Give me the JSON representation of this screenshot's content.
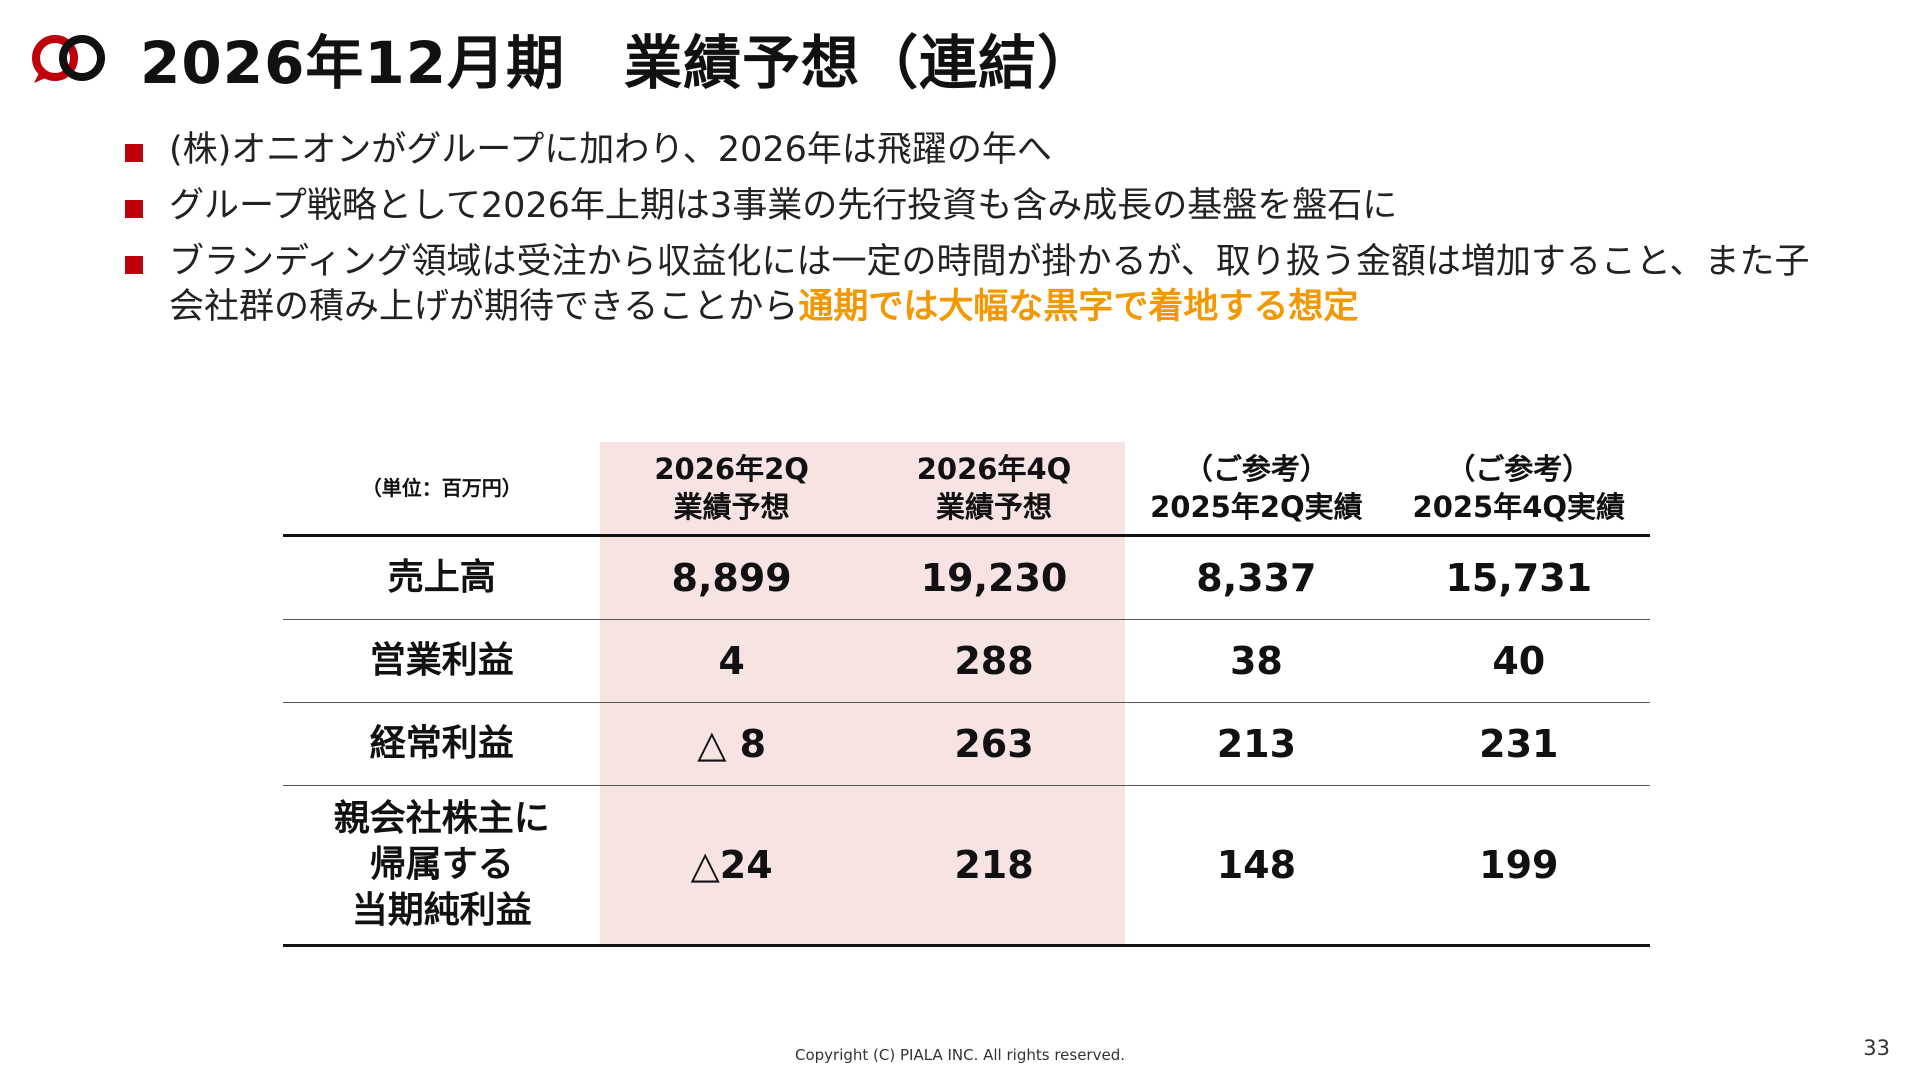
{
  "header": {
    "title": "2026年12月期　業績予想（連結）"
  },
  "bullets": [
    {
      "text": "(株)オニオンがグループに加わり、2026年は飛躍の年へ"
    },
    {
      "text": "グループ戦略として2026年上期は3事業の先行投資も含み成長の基盤を盤石に"
    },
    {
      "text": "ブランディング領域は受注から収益化には一定の時間が掛かるが、取り扱う金額は増加すること、また子会社群の積み上げが期待できることから",
      "highlight": "通期では大幅な黒字で着地する想定"
    }
  ],
  "table": {
    "unit": "（単位：百万円）",
    "columns": [
      {
        "line1": "2026年2Q",
        "line2": "業績予想"
      },
      {
        "line1": "2026年4Q",
        "line2": "業績予想"
      },
      {
        "line1": "（ご参考）",
        "line2": "2025年2Q実績"
      },
      {
        "line1": "（ご参考）",
        "line2": "2025年4Q実績"
      }
    ],
    "rows": [
      {
        "label": [
          "売上高"
        ],
        "values": [
          "8,899",
          "19,230",
          "8,337",
          "15,731"
        ]
      },
      {
        "label": [
          "営業利益"
        ],
        "values": [
          "4",
          "288",
          "38",
          "40"
        ]
      },
      {
        "label": [
          "経常利益"
        ],
        "values": [
          "△ 8",
          "263",
          "213",
          "231"
        ]
      },
      {
        "label": [
          "親会社株主に",
          "帰属する",
          "当期純利益"
        ],
        "values": [
          "△24",
          "218",
          "148",
          "199"
        ]
      }
    ]
  },
  "footer": {
    "copyright": "Copyright (C) PIALA INC. All rights reserved.",
    "page_number": "33"
  },
  "colors": {
    "accent_red": "#c0000b",
    "highlight_orange": "#f39800",
    "forecast_column_bg": "#f8e3e3"
  },
  "icons": {
    "logo": "piala-logo-icon",
    "bullet": "square-bullet-icon"
  }
}
